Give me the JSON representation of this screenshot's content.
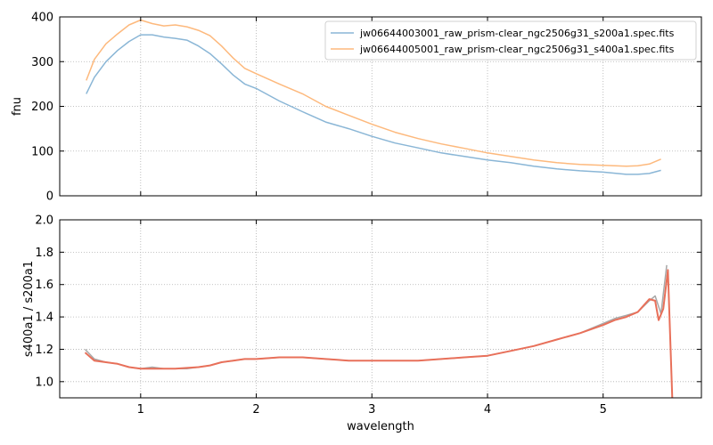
{
  "chart_data": [
    {
      "type": "line",
      "title": "",
      "xlabel": "",
      "ylabel": "fnu",
      "xlim": [
        0.3,
        5.85
      ],
      "ylim": [
        0,
        400
      ],
      "xticks": [
        1,
        2,
        3,
        4,
        5
      ],
      "xtick_labels_visible": false,
      "yticks": [
        0,
        100,
        200,
        300,
        400
      ],
      "ytick_labels": [
        "0",
        "100",
        "200",
        "300",
        "400"
      ],
      "grid": true,
      "legend_position": "top-right",
      "series": [
        {
          "name": "jw06644003001_raw_prism-clear_ngc2506g31_s200a1.spec.fits",
          "color": "#8ab6d6",
          "x": [
            0.53,
            0.6,
            0.7,
            0.8,
            0.9,
            1.0,
            1.1,
            1.2,
            1.3,
            1.4,
            1.5,
            1.6,
            1.7,
            1.8,
            1.9,
            2.0,
            2.2,
            2.4,
            2.6,
            2.8,
            3.0,
            3.2,
            3.4,
            3.6,
            3.8,
            4.0,
            4.2,
            4.4,
            4.6,
            4.8,
            5.0,
            5.2,
            5.3,
            5.4,
            5.5
          ],
          "y": [
            228,
            265,
            300,
            325,
            345,
            360,
            360,
            355,
            352,
            348,
            335,
            318,
            295,
            270,
            250,
            240,
            212,
            188,
            165,
            150,
            133,
            118,
            107,
            96,
            88,
            80,
            74,
            66,
            60,
            56,
            53,
            48,
            48,
            50,
            57
          ]
        },
        {
          "name": "jw06644005001_raw_prism-clear_ngc2506g31_s400a1.spec.fits",
          "color": "#fdb97d",
          "x": [
            0.53,
            0.6,
            0.7,
            0.8,
            0.9,
            1.0,
            1.1,
            1.2,
            1.3,
            1.4,
            1.5,
            1.6,
            1.7,
            1.8,
            1.9,
            2.0,
            2.2,
            2.4,
            2.6,
            2.8,
            3.0,
            3.2,
            3.4,
            3.6,
            3.8,
            4.0,
            4.2,
            4.4,
            4.6,
            4.8,
            5.0,
            5.2,
            5.3,
            5.4,
            5.5
          ],
          "y": [
            258,
            305,
            340,
            362,
            382,
            393,
            385,
            380,
            382,
            378,
            370,
            358,
            335,
            308,
            285,
            273,
            250,
            228,
            200,
            180,
            160,
            142,
            128,
            116,
            106,
            96,
            88,
            80,
            74,
            70,
            68,
            66,
            67,
            71,
            82
          ]
        }
      ]
    },
    {
      "type": "line",
      "title": "",
      "xlabel": "wavelength",
      "ylabel": "s400a1 / s200a1",
      "xlim": [
        0.3,
        5.85
      ],
      "ylim": [
        0.9,
        2.0
      ],
      "xticks": [
        1,
        2,
        3,
        4,
        5
      ],
      "xtick_labels": [
        "1",
        "2",
        "3",
        "4",
        "5"
      ],
      "yticks": [
        1.0,
        1.2,
        1.4,
        1.6,
        1.8,
        2.0
      ],
      "ytick_labels": [
        "1.0",
        "1.2",
        "1.4",
        "1.6",
        "1.8",
        "2.0"
      ],
      "grid": true,
      "series": [
        {
          "color": "#a8a8a8",
          "x": [
            0.52,
            0.6,
            0.7,
            0.8,
            0.9,
            1.0,
            1.1,
            1.2,
            1.3,
            1.4,
            1.5,
            1.6,
            1.7,
            1.8,
            1.9,
            2.0,
            2.2,
            2.4,
            2.6,
            2.8,
            3.0,
            3.2,
            3.4,
            3.6,
            3.8,
            4.0,
            4.2,
            4.4,
            4.6,
            4.8,
            5.0,
            5.1,
            5.2,
            5.3,
            5.4,
            5.45,
            5.5,
            5.55
          ],
          "y": [
            1.2,
            1.14,
            1.12,
            1.11,
            1.09,
            1.08,
            1.09,
            1.08,
            1.08,
            1.08,
            1.09,
            1.1,
            1.12,
            1.13,
            1.14,
            1.14,
            1.15,
            1.15,
            1.14,
            1.13,
            1.13,
            1.13,
            1.13,
            1.14,
            1.15,
            1.16,
            1.19,
            1.22,
            1.26,
            1.3,
            1.36,
            1.39,
            1.41,
            1.43,
            1.5,
            1.53,
            1.42,
            1.72
          ]
        },
        {
          "color": "#e8705a",
          "x": [
            0.52,
            0.6,
            0.7,
            0.8,
            0.9,
            1.0,
            1.1,
            1.2,
            1.3,
            1.4,
            1.5,
            1.6,
            1.7,
            1.8,
            1.9,
            2.0,
            2.2,
            2.4,
            2.6,
            2.8,
            3.0,
            3.2,
            3.4,
            3.6,
            3.8,
            4.0,
            4.2,
            4.4,
            4.6,
            4.8,
            5.0,
            5.1,
            5.2,
            5.3,
            5.4,
            5.45,
            5.48,
            5.52,
            5.56,
            5.6
          ],
          "y": [
            1.18,
            1.13,
            1.12,
            1.11,
            1.09,
            1.08,
            1.08,
            1.08,
            1.08,
            1.085,
            1.09,
            1.1,
            1.12,
            1.13,
            1.14,
            1.14,
            1.15,
            1.15,
            1.14,
            1.13,
            1.13,
            1.13,
            1.13,
            1.14,
            1.15,
            1.16,
            1.19,
            1.22,
            1.26,
            1.3,
            1.35,
            1.38,
            1.4,
            1.43,
            1.51,
            1.5,
            1.38,
            1.45,
            1.69,
            0.85
          ]
        }
      ]
    }
  ]
}
